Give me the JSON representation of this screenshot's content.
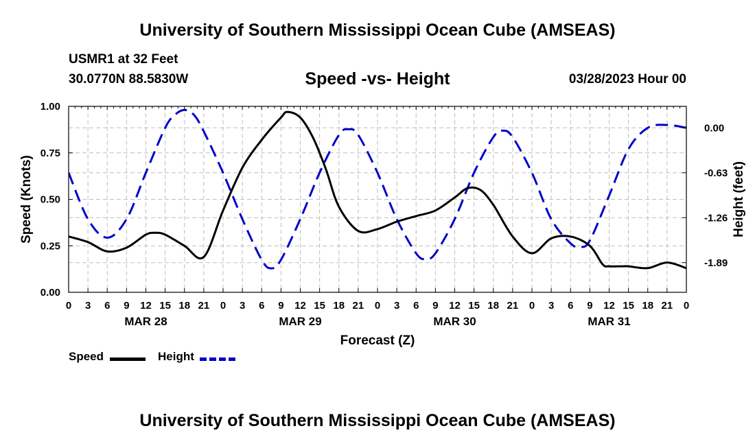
{
  "header": {
    "title": "University of Southern Mississippi Ocean Cube (AMSEAS)",
    "station": "USMR1 at 32 Feet",
    "coords": "30.0770N  88.5830W",
    "date": "03/28/2023 Hour 00"
  },
  "footer": {
    "title": "University of Southern Mississippi Ocean Cube (AMSEAS)"
  },
  "colors": {
    "speed": "#000000",
    "height": "#0000cc",
    "grid": "#bdbdbd"
  },
  "chart_data": {
    "type": "line",
    "title": "Speed -vs- Height",
    "xlabel": "Forecast (Z)",
    "ylabel_left": "Speed (Knots)",
    "ylabel_right": "Height (feet)",
    "xlim": [
      0,
      96
    ],
    "ylim_left": [
      0,
      1.0
    ],
    "ylim_right": [
      -2.306,
      0.301
    ],
    "x_ticks": [
      0,
      3,
      6,
      9,
      12,
      15,
      18,
      21,
      24,
      27,
      30,
      33,
      36,
      39,
      42,
      45,
      48,
      51,
      54,
      57,
      60,
      63,
      66,
      69,
      72,
      75,
      78,
      81,
      84,
      87,
      90,
      93,
      96
    ],
    "x_tick_labels": [
      "0",
      "3",
      "6",
      "9",
      "12",
      "15",
      "18",
      "21",
      "0",
      "3",
      "6",
      "9",
      "12",
      "15",
      "18",
      "21",
      "0",
      "3",
      "6",
      "9",
      "12",
      "15",
      "18",
      "21",
      "0",
      "3",
      "6",
      "9",
      "12",
      "15",
      "18",
      "21",
      "0"
    ],
    "day_labels": [
      {
        "x": 12,
        "label": "MAR 28"
      },
      {
        "x": 36,
        "label": "MAR 29"
      },
      {
        "x": 60,
        "label": "MAR 30"
      },
      {
        "x": 84,
        "label": "MAR 31"
      }
    ],
    "y_left_ticks": [
      0,
      0.25,
      0.5,
      0.75,
      1.0
    ],
    "y_left_tick_labels": [
      "0.00",
      "0.25",
      "0.50",
      "0.75",
      "1.00"
    ],
    "y_right_ticks": [
      0.0,
      -0.63,
      -1.26,
      -1.89
    ],
    "y_right_tick_labels": [
      "0.00",
      "-0.63",
      "-1.26",
      "-1.89"
    ],
    "grid": true,
    "series": [
      {
        "name": "Speed",
        "axis": "left",
        "style": "solid",
        "x": [
          0,
          3,
          6,
          9,
          12,
          13.5,
          15,
          18,
          21,
          24,
          27,
          30,
          33,
          34,
          36,
          38,
          40,
          42,
          45,
          48,
          51,
          54,
          57,
          60,
          62,
          64,
          66,
          69,
          72,
          75,
          78,
          81,
          83,
          84,
          86,
          87,
          90,
          93,
          96
        ],
        "values": [
          0.3,
          0.27,
          0.22,
          0.24,
          0.31,
          0.32,
          0.31,
          0.25,
          0.19,
          0.44,
          0.67,
          0.82,
          0.94,
          0.97,
          0.94,
          0.83,
          0.66,
          0.46,
          0.33,
          0.34,
          0.38,
          0.41,
          0.44,
          0.51,
          0.56,
          0.55,
          0.47,
          0.3,
          0.21,
          0.29,
          0.3,
          0.25,
          0.15,
          0.14,
          0.14,
          0.14,
          0.13,
          0.16,
          0.13
        ]
      },
      {
        "name": "Height",
        "axis": "right",
        "style": "dashed",
        "x": [
          0,
          3,
          6,
          9,
          12,
          15,
          16.5,
          18,
          19.5,
          21,
          24,
          27,
          30,
          31.5,
          33,
          36,
          39,
          42,
          43.5,
          45,
          48,
          51,
          54,
          55.5,
          57,
          60,
          63,
          66,
          67.5,
          69,
          72,
          75,
          78,
          79.5,
          81,
          84,
          87,
          90,
          93,
          96
        ],
        "values": [
          -0.63,
          -1.28,
          -1.54,
          -1.28,
          -0.63,
          -0.0,
          0.18,
          0.25,
          0.18,
          -0.05,
          -0.63,
          -1.28,
          -1.85,
          -1.97,
          -1.85,
          -1.28,
          -0.63,
          -0.1,
          -0.02,
          -0.1,
          -0.63,
          -1.28,
          -1.76,
          -1.84,
          -1.76,
          -1.28,
          -0.63,
          -0.13,
          -0.04,
          -0.13,
          -0.63,
          -1.28,
          -1.62,
          -1.67,
          -1.58,
          -0.95,
          -0.3,
          0.0,
          0.04,
          0.0
        ]
      }
    ],
    "legend": [
      {
        "name": "Speed",
        "style": "solid"
      },
      {
        "name": "Height",
        "style": "dashed"
      }
    ]
  }
}
